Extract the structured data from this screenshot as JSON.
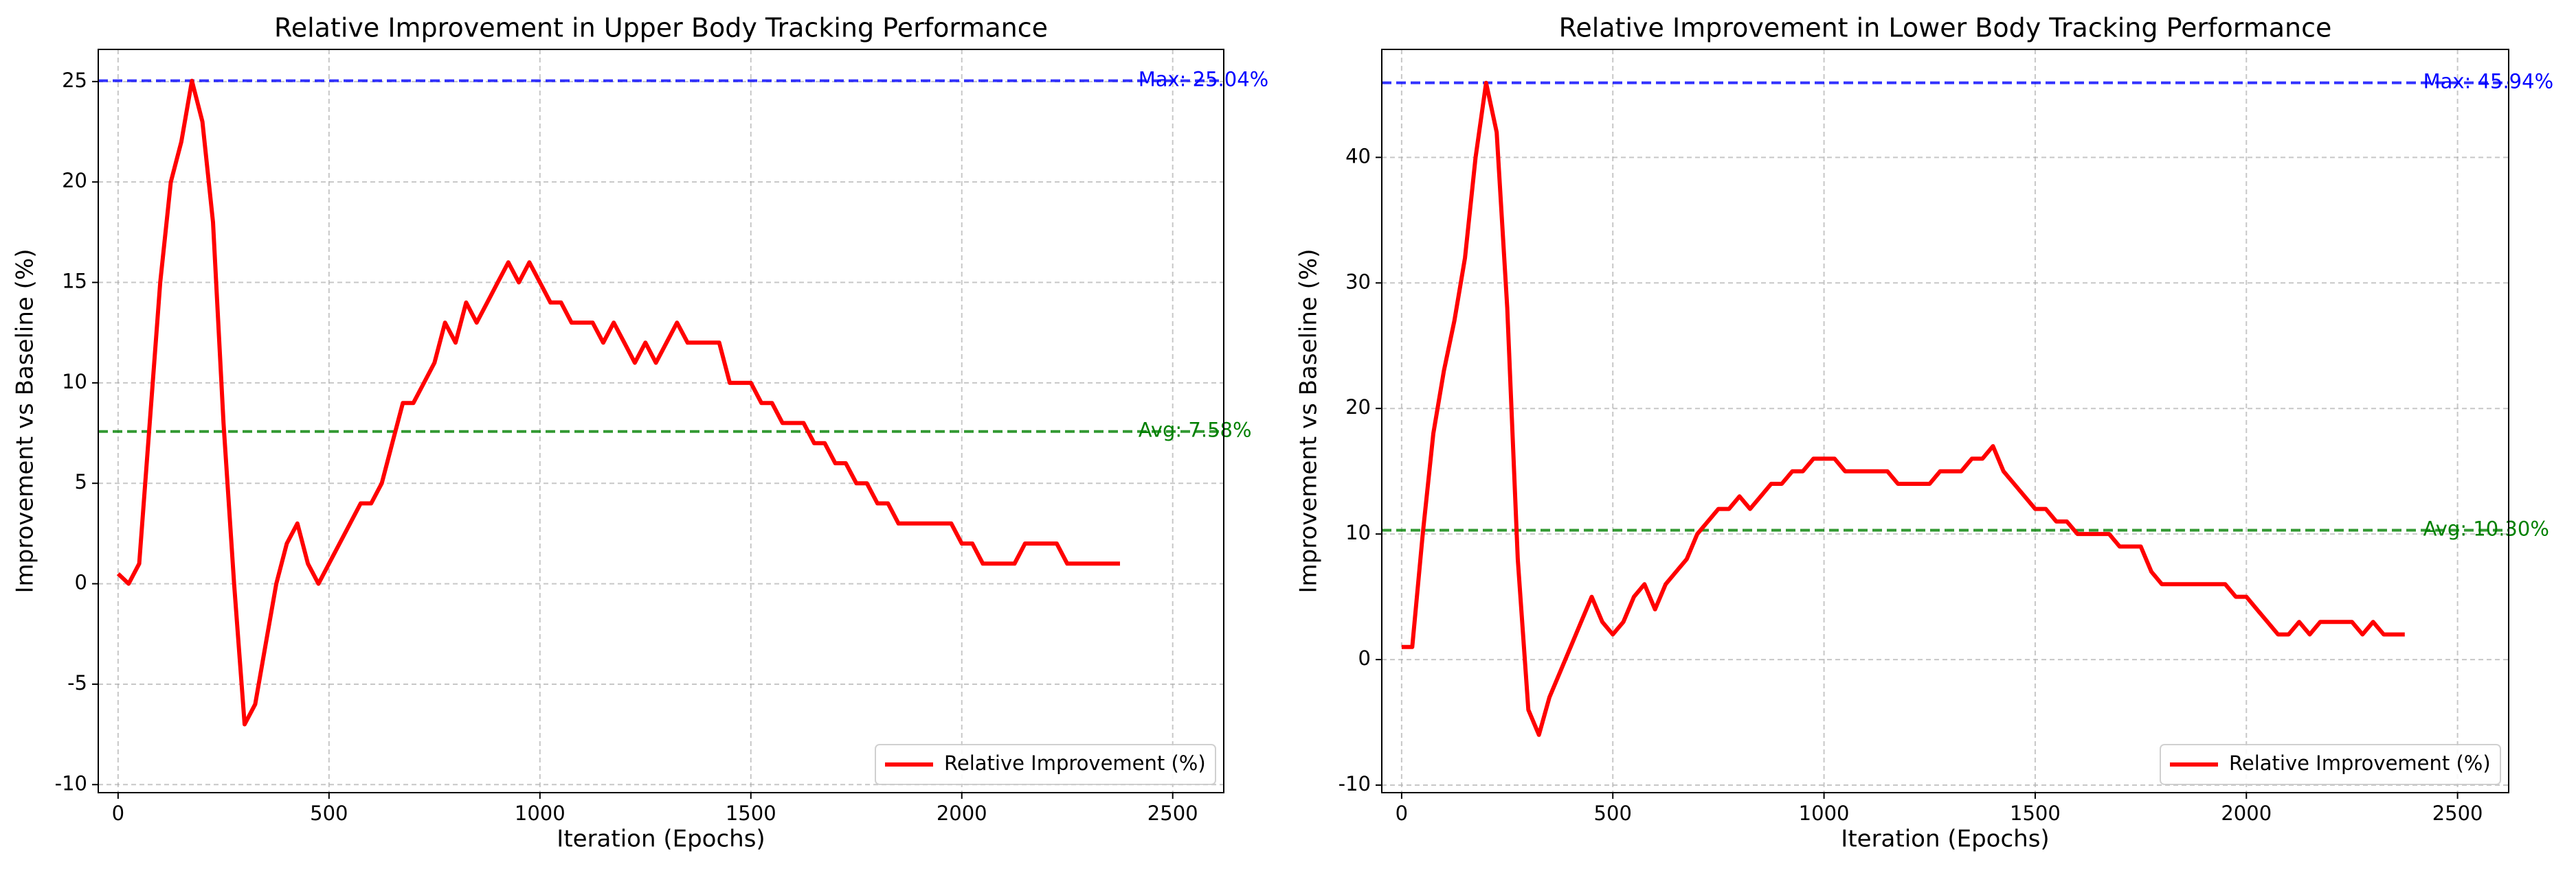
{
  "chart_data": [
    {
      "type": "line",
      "title": "Relative Improvement in Upper Body Tracking Performance",
      "x_label": "Iteration (Epochs)",
      "y_label": "Improvement vs Baseline (%)",
      "x": [
        0,
        25,
        50,
        75,
        100,
        125,
        150,
        175,
        200,
        225,
        250,
        275,
        300,
        325,
        350,
        375,
        400,
        425,
        450,
        475,
        500,
        525,
        550,
        575,
        600,
        625,
        650,
        675,
        700,
        725,
        750,
        775,
        800,
        825,
        850,
        875,
        900,
        925,
        950,
        975,
        1000,
        1025,
        1050,
        1075,
        1100,
        1125,
        1150,
        1175,
        1200,
        1225,
        1250,
        1275,
        1300,
        1325,
        1350,
        1375,
        1400,
        1425,
        1450,
        1475,
        1500,
        1525,
        1550,
        1575,
        1600,
        1625,
        1650,
        1675,
        1700,
        1725,
        1750,
        1775,
        1800,
        1825,
        1850,
        1875,
        1900,
        1925,
        1950,
        1975,
        2000,
        2025,
        2050,
        2075,
        2100,
        2125,
        2150,
        2175,
        2200,
        2225,
        2250,
        2275,
        2300,
        2325,
        2350,
        2375
      ],
      "series": [
        {
          "name": "Relative Improvement (%)",
          "color": "#ff0000",
          "values": [
            0.5,
            0,
            1,
            8,
            15,
            20,
            22,
            25.04,
            23,
            18,
            8,
            0,
            -7,
            -6,
            -3,
            0,
            2,
            3,
            1,
            0,
            1,
            2,
            3,
            4,
            4,
            5,
            7,
            9,
            9,
            10,
            11,
            13,
            12,
            14,
            13,
            14,
            15,
            16,
            15,
            16,
            15,
            14,
            14,
            13,
            13,
            13,
            12,
            13,
            12,
            11,
            12,
            11,
            12,
            13,
            12,
            12,
            12,
            12,
            10,
            10,
            10,
            9,
            9,
            8,
            8,
            8,
            7,
            7,
            6,
            6,
            5,
            5,
            4,
            4,
            3,
            3,
            3,
            3,
            3,
            3,
            2,
            2,
            1,
            1,
            1,
            1,
            2,
            2,
            2,
            2,
            1,
            1,
            1,
            1,
            1,
            1
          ]
        }
      ],
      "hlines": [
        {
          "value": 25.04,
          "label": "Max: 25.04%",
          "color": "#0000ff"
        },
        {
          "value": 7.58,
          "label": "Avg: 7.58%",
          "color": "#008000"
        }
      ],
      "xlim": [
        -47,
        2621
      ],
      "xticks": [
        0,
        500,
        1000,
        1500,
        2000,
        2500
      ],
      "ylim": [
        -10.4,
        26.6
      ],
      "yticks": [
        -10,
        -5,
        0,
        5,
        10,
        15,
        20,
        25
      ],
      "grid": true,
      "legend": "lower right"
    },
    {
      "type": "line",
      "title": "Relative Improvement in Lower Body Tracking Performance",
      "x_label": "Iteration (Epochs)",
      "y_label": "Improvement vs Baseline (%)",
      "x": [
        0,
        25,
        50,
        75,
        100,
        125,
        150,
        175,
        200,
        225,
        250,
        275,
        300,
        325,
        350,
        375,
        400,
        425,
        450,
        475,
        500,
        525,
        550,
        575,
        600,
        625,
        650,
        675,
        700,
        725,
        750,
        775,
        800,
        825,
        850,
        875,
        900,
        925,
        950,
        975,
        1000,
        1025,
        1050,
        1075,
        1100,
        1125,
        1150,
        1175,
        1200,
        1225,
        1250,
        1275,
        1300,
        1325,
        1350,
        1375,
        1400,
        1425,
        1450,
        1475,
        1500,
        1525,
        1550,
        1575,
        1600,
        1625,
        1650,
        1675,
        1700,
        1725,
        1750,
        1775,
        1800,
        1825,
        1850,
        1875,
        1900,
        1925,
        1950,
        1975,
        2000,
        2025,
        2050,
        2075,
        2100,
        2125,
        2150,
        2175,
        2200,
        2225,
        2250,
        2275,
        2300,
        2325,
        2350,
        2375
      ],
      "series": [
        {
          "name": "Relative Improvement (%)",
          "color": "#ff0000",
          "values": [
            1,
            1,
            10,
            18,
            23,
            27,
            32,
            40,
            45.94,
            42,
            28,
            8,
            -4,
            -6,
            -3,
            -1,
            1,
            3,
            5,
            3,
            2,
            3,
            5,
            6,
            4,
            6,
            7,
            8,
            10,
            11,
            12,
            12,
            13,
            12,
            13,
            14,
            14,
            15,
            15,
            16,
            16,
            16,
            15,
            15,
            15,
            15,
            15,
            14,
            14,
            14,
            14,
            15,
            15,
            15,
            16,
            16,
            17,
            15,
            14,
            13,
            12,
            12,
            11,
            11,
            10,
            10,
            10,
            10,
            9,
            9,
            9,
            7,
            6,
            6,
            6,
            6,
            6,
            6,
            6,
            5,
            5,
            4,
            3,
            2,
            2,
            3,
            2,
            3,
            3,
            3,
            3,
            2,
            3,
            2,
            2,
            2
          ]
        }
      ],
      "hlines": [
        {
          "value": 45.94,
          "label": "Max: 45.94%",
          "color": "#0000ff"
        },
        {
          "value": 10.3,
          "label": "Avg: 10.30%",
          "color": "#008000"
        }
      ],
      "xlim": [
        -47,
        2621
      ],
      "xticks": [
        0,
        500,
        1000,
        1500,
        2000,
        2500
      ],
      "ylim": [
        -10.6,
        48.6
      ],
      "yticks": [
        -10,
        0,
        10,
        20,
        30,
        40
      ],
      "grid": true,
      "legend": "lower right"
    }
  ]
}
